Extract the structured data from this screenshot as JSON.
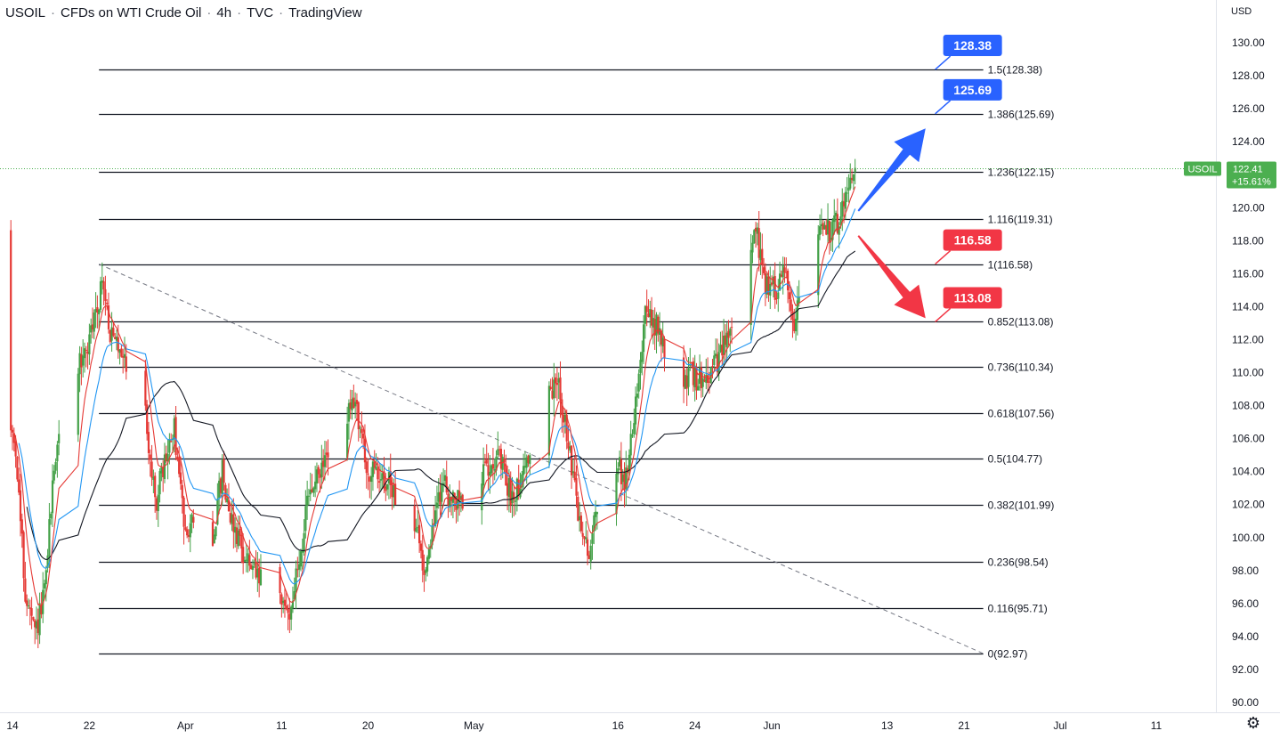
{
  "header": {
    "symbol": "USOIL",
    "description": "CFDs on WTI Crude Oil",
    "interval": "4h",
    "source": "TVC",
    "platform": "TradingView"
  },
  "colors": {
    "up": "#43a047",
    "down": "#e53935",
    "ema_fast": "#e53935",
    "ema_mid": "#2196f3",
    "sma_slow": "#131722",
    "callout_blue": "#2962ff",
    "callout_red": "#f23645",
    "price_green": "#4caf50",
    "fib_line": "#131722"
  },
  "chart_data": {
    "type": "candlestick",
    "currency": "USD",
    "ylim": [
      90,
      131
    ],
    "y_ticks": [
      "130.00",
      "128.00",
      "126.00",
      "124.00",
      "122.00",
      "120.00",
      "118.00",
      "116.00",
      "114.00",
      "112.00",
      "110.00",
      "108.00",
      "106.00",
      "104.00",
      "102.00",
      "100.00",
      "98.00",
      "96.00",
      "94.00",
      "92.00",
      "90.00"
    ],
    "x_ticks": [
      {
        "label": "14",
        "date": "2022-03-14"
      },
      {
        "label": "22",
        "date": "2022-03-22"
      },
      {
        "label": "Apr",
        "date": "2022-04-01"
      },
      {
        "label": "11",
        "date": "2022-04-11"
      },
      {
        "label": "20",
        "date": "2022-04-20"
      },
      {
        "label": "May",
        "date": "2022-05-01"
      },
      {
        "label": "16",
        "date": "2022-05-16"
      },
      {
        "label": "24",
        "date": "2022-05-24"
      },
      {
        "label": "Jun",
        "date": "2022-06-01"
      },
      {
        "label": "13",
        "date": "2022-06-13"
      },
      {
        "label": "21",
        "date": "2022-06-21"
      },
      {
        "label": "Jul",
        "date": "2022-07-01"
      },
      {
        "label": "11",
        "date": "2022-07-11"
      }
    ],
    "x_range": [
      "2022-03-13",
      "2022-07-17"
    ],
    "fibonacci": {
      "start_date": "2022-03-23",
      "end_date": "2022-06-23",
      "levels": [
        {
          "ratio": "1.5",
          "price": 128.38,
          "label": "1.5(128.38)"
        },
        {
          "ratio": "1.386",
          "price": 125.69,
          "label": "1.386(125.69)"
        },
        {
          "ratio": "1.236",
          "price": 122.15,
          "label": "1.236(122.15)"
        },
        {
          "ratio": "1.116",
          "price": 119.31,
          "label": "1.116(119.31)"
        },
        {
          "ratio": "1",
          "price": 116.58,
          "label": "1(116.58)"
        },
        {
          "ratio": "0.852",
          "price": 113.08,
          "label": "0.852(113.08)"
        },
        {
          "ratio": "0.736",
          "price": 110.34,
          "label": "0.736(110.34)"
        },
        {
          "ratio": "0.618",
          "price": 107.56,
          "label": "0.618(107.56)"
        },
        {
          "ratio": "0.5",
          "price": 104.77,
          "label": "0.5(104.77)"
        },
        {
          "ratio": "0.382",
          "price": 101.99,
          "label": "0.382(101.99)"
        },
        {
          "ratio": "0.236",
          "price": 98.54,
          "label": "0.236(98.54)"
        },
        {
          "ratio": "0.116",
          "price": 95.71,
          "label": "0.116(95.71)"
        },
        {
          "ratio": "0",
          "price": 92.97,
          "label": "0(92.97)"
        }
      ],
      "trend_line": {
        "from_date": "2022-03-23",
        "from_price": 116.58,
        "to_date": "2022-06-23",
        "to_price": 92.97
      }
    },
    "callouts": [
      {
        "text": "128.38",
        "price": 128.38,
        "date": "2022-06-18",
        "color": "blue"
      },
      {
        "text": "125.69",
        "price": 125.69,
        "date": "2022-06-18",
        "color": "blue"
      },
      {
        "text": "116.58",
        "price": 116.58,
        "date": "2022-06-18",
        "color": "red"
      },
      {
        "text": "113.08",
        "price": 113.08,
        "date": "2022-06-18",
        "color": "red"
      }
    ],
    "arrows": [
      {
        "direction": "up",
        "from_date": "2022-06-10",
        "from_price": 119.8,
        "to_date": "2022-06-17",
        "to_price": 124.8,
        "color": "blue"
      },
      {
        "direction": "down",
        "from_date": "2022-06-10",
        "from_price": 118.3,
        "to_date": "2022-06-17",
        "to_price": 113.3,
        "color": "red"
      }
    ],
    "last_price": {
      "symbol_label": "USOIL",
      "price_label": "122.41",
      "change_label": "+15.61%",
      "price": 122.41
    },
    "anchors": [
      [
        "2022-03-12 00:00",
        118.5
      ],
      [
        "2022-03-13 12:00",
        107.5
      ],
      [
        "2022-03-14 12:00",
        105.5
      ],
      [
        "2022-03-15 12:00",
        96.5
      ],
      [
        "2022-03-16 12:00",
        94.0
      ],
      [
        "2022-03-17 12:00",
        96.5
      ],
      [
        "2022-03-18 12:00",
        104.5
      ],
      [
        "2022-03-21 00:00",
        110.5
      ],
      [
        "2022-03-22 00:00",
        111.5
      ],
      [
        "2022-03-23 12:00",
        115.5
      ],
      [
        "2022-03-24 12:00",
        112.0
      ],
      [
        "2022-03-25 12:00",
        111.5
      ],
      [
        "2022-03-28 00:00",
        107.5
      ],
      [
        "2022-03-29 00:00",
        102.0
      ],
      [
        "2022-03-30 00:00",
        104.5
      ],
      [
        "2022-03-31 00:00",
        106.5
      ],
      [
        "2022-04-01 00:00",
        101.0
      ],
      [
        "2022-04-04 00:00",
        100.0
      ],
      [
        "2022-04-05 00:00",
        104.0
      ],
      [
        "2022-04-06 00:00",
        101.0
      ],
      [
        "2022-04-08 00:00",
        98.0
      ],
      [
        "2022-04-11 00:00",
        96.0
      ],
      [
        "2022-04-12 00:00",
        95.5
      ],
      [
        "2022-04-13 00:00",
        98.5
      ],
      [
        "2022-04-14 00:00",
        102.5
      ],
      [
        "2022-04-18 00:00",
        107.5
      ],
      [
        "2022-04-19 00:00",
        108.0
      ],
      [
        "2022-04-20 00:00",
        104.0
      ],
      [
        "2022-04-22 00:00",
        103.5
      ],
      [
        "2022-04-25 00:00",
        101.0
      ],
      [
        "2022-04-26 00:00",
        98.0
      ],
      [
        "2022-04-27 00:00",
        101.0
      ],
      [
        "2022-04-28 00:00",
        103.5
      ],
      [
        "2022-04-29 00:00",
        102.0
      ],
      [
        "2022-05-02 00:00",
        103.5
      ],
      [
        "2022-05-03 00:00",
        105.0
      ],
      [
        "2022-05-04 00:00",
        104.5
      ],
      [
        "2022-05-05 00:00",
        102.5
      ],
      [
        "2022-05-06 00:00",
        103.5
      ],
      [
        "2022-05-09 00:00",
        108.5
      ],
      [
        "2022-05-10 00:00",
        109.5
      ],
      [
        "2022-05-11 00:00",
        105.5
      ],
      [
        "2022-05-12 00:00",
        101.5
      ],
      [
        "2022-05-13 00:00",
        99.0
      ],
      [
        "2022-05-14 00:00",
        101.5
      ],
      [
        "2022-05-16 00:00",
        104.5
      ],
      [
        "2022-05-17 00:00",
        103.5
      ],
      [
        "2022-05-18 00:00",
        108.5
      ],
      [
        "2022-05-19 00:00",
        113.5
      ],
      [
        "2022-05-20 12:00",
        112.5
      ],
      [
        "2022-05-21 12:00",
        110.0
      ],
      [
        "2022-05-22 12:00",
        108.0
      ],
      [
        "2022-05-23 12:00",
        110.0
      ],
      [
        "2022-05-24 12:00",
        109.5
      ],
      [
        "2022-05-25 12:00",
        110.0
      ],
      [
        "2022-05-26 12:00",
        110.5
      ],
      [
        "2022-05-27 12:00",
        112.0
      ],
      [
        "2022-05-28 12:00",
        114.5
      ],
      [
        "2022-05-29 12:00",
        115.5
      ],
      [
        "2022-05-30 12:00",
        118.5
      ],
      [
        "2022-05-31 12:00",
        115.5
      ],
      [
        "2022-06-01 12:00",
        115.0
      ],
      [
        "2022-06-02 12:00",
        116.5
      ],
      [
        "2022-06-03 12:00",
        113.0
      ],
      [
        "2022-06-04 12:00",
        116.0
      ],
      [
        "2022-06-05 12:00",
        119.5
      ],
      [
        "2022-06-06 12:00",
        118.5
      ],
      [
        "2022-06-07 12:00",
        118.5
      ],
      [
        "2022-06-08 12:00",
        120.0
      ],
      [
        "2022-06-09 12:00",
        122.4
      ]
    ]
  }
}
